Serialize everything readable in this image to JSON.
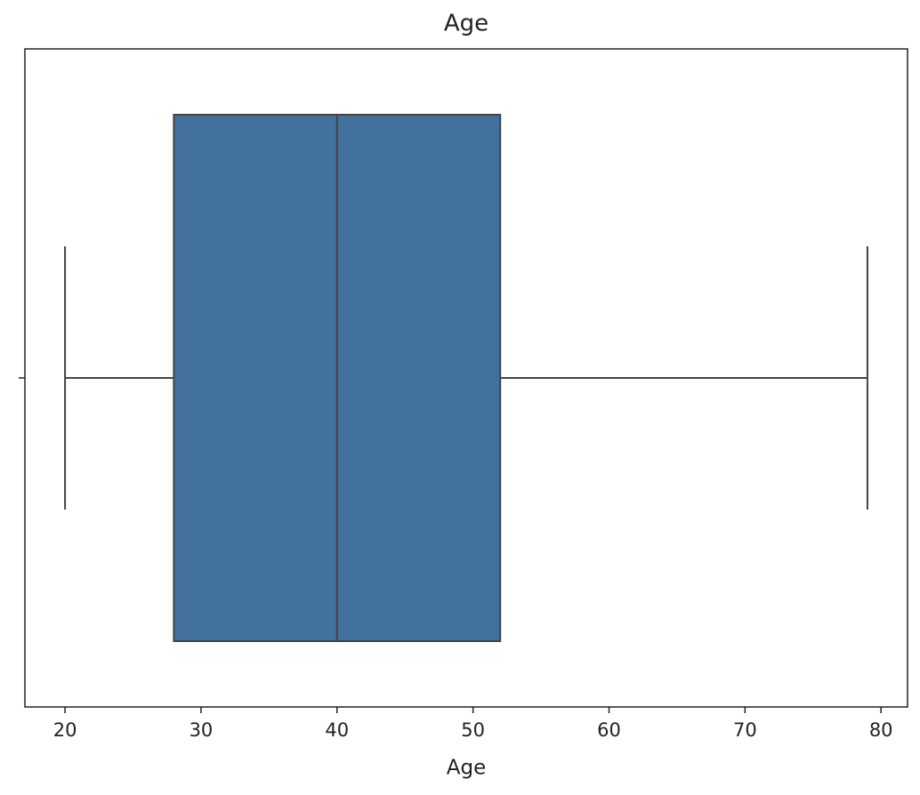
{
  "chart_data": {
    "type": "box",
    "title": "Age",
    "xlabel": "Age",
    "categories": [
      null
    ],
    "boxes": [
      {
        "min": 20,
        "q1": 28,
        "median": 40,
        "q3": 52,
        "max": 79
      }
    ],
    "color": "#41719c",
    "line_color": "#444444",
    "xlim": [
      17.05,
      81.95
    ],
    "xticks": [
      20,
      30,
      40,
      50,
      60,
      70,
      80
    ],
    "grid": false
  }
}
